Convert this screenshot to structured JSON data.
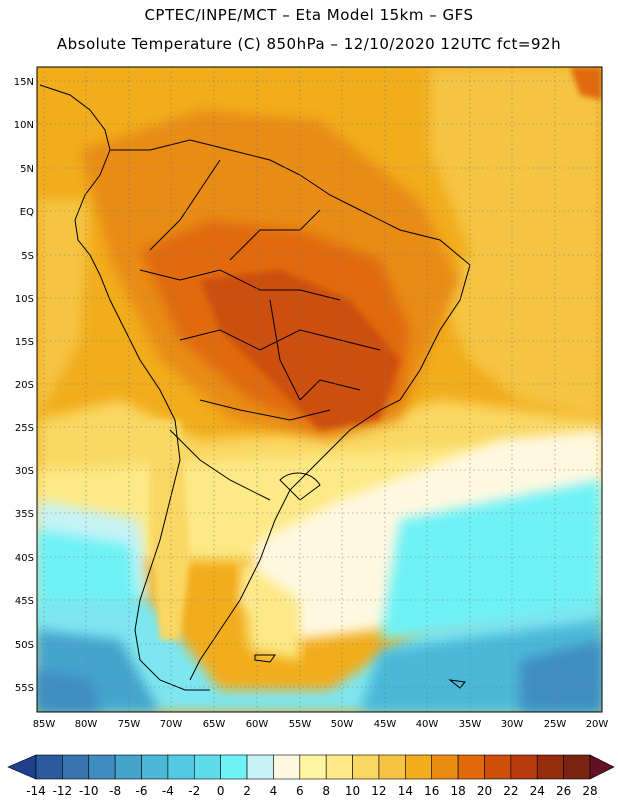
{
  "header": {
    "line1": "CPTEC/INPE/MCT –  Eta Model 15km – GFS",
    "line2": "Absolute Temperature (C) 850hPa – 12/10/2020 12UTC fct=92h"
  },
  "axes": {
    "lat_labels": [
      "15N",
      "10N",
      "5N",
      "EQ",
      "5S",
      "10S",
      "15S",
      "20S",
      "25S",
      "30S",
      "35S",
      "40S",
      "45S",
      "50S",
      "55S"
    ],
    "lon_labels": [
      "85W",
      "80W",
      "75W",
      "70W",
      "65W",
      "60W",
      "55W",
      "50W",
      "45W",
      "40W",
      "35W",
      "30W",
      "25W",
      "20W"
    ]
  },
  "colorbar": {
    "labels": [
      "-14",
      "-12",
      "-10",
      "-8",
      "-6",
      "-4",
      "-2",
      "0",
      "2",
      "4",
      "6",
      "8",
      "10",
      "12",
      "14",
      "16",
      "18",
      "20",
      "22",
      "24",
      "26",
      "28"
    ],
    "colors": [
      "#1f3f8f",
      "#2c5a9f",
      "#3a74b0",
      "#3f8dc0",
      "#45a3cc",
      "#4bb8d8",
      "#52cbe2",
      "#5edcec",
      "#6ef2f6",
      "#c6f3f6",
      "#fff8e1",
      "#fff5a0",
      "#fde985",
      "#f9d762",
      "#f5c443",
      "#f2ad1c",
      "#e98c12",
      "#e06a0a",
      "#cd4f0a",
      "#b53a0c",
      "#962c0e",
      "#7a2310",
      "#650f25"
    ]
  },
  "palette": {
    "ocean_cold": "#3fb2d6",
    "ocean_cool": "#7de6f0",
    "ocean_mild": "#fff8e1",
    "warm": "#f2ad1c",
    "hot": "#e06a0a",
    "very_hot": "#cd4f0a",
    "frame": "#000000"
  }
}
